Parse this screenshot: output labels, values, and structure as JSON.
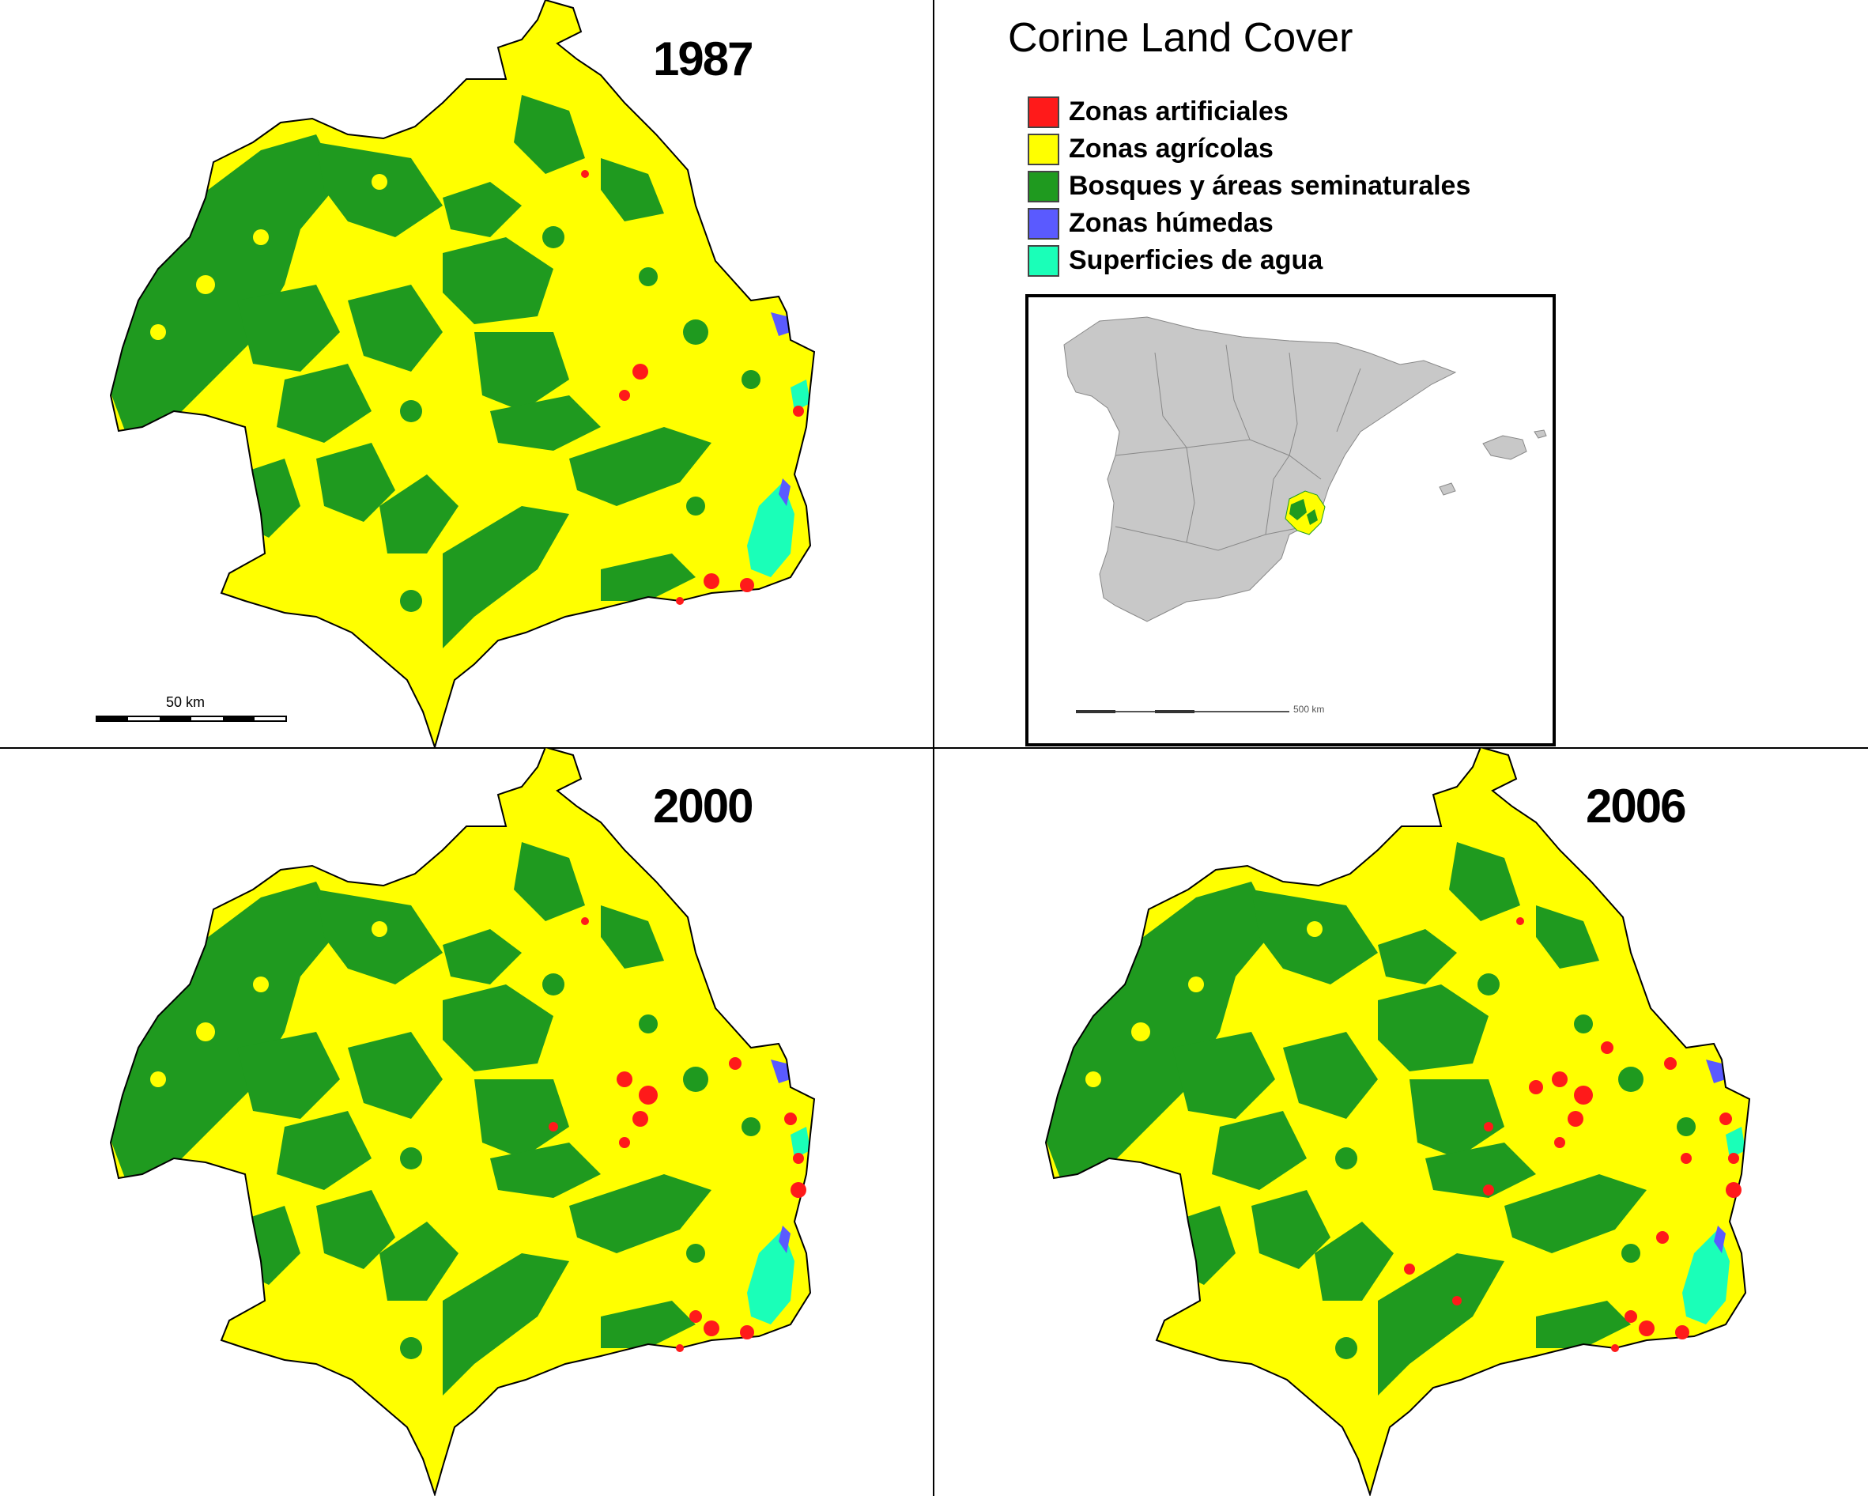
{
  "colors": {
    "artificial": "#ff1a1a",
    "agricultural": "#ffff00",
    "forest": "#1f9a1f",
    "wetland": "#5a5aff",
    "water": "#1affb8",
    "spain": "#c8c8c8"
  },
  "maps": [
    {
      "year": "1987"
    },
    {
      "year": "2000"
    },
    {
      "year": "2006"
    }
  ],
  "scale_bar": {
    "label": "50 km"
  },
  "legend": {
    "title": "Corine Land Cover",
    "items": [
      {
        "label": "Zonas artificiales",
        "color": "#ff1a1a"
      },
      {
        "label": "Zonas agrícolas",
        "color": "#ffff00"
      },
      {
        "label": "Bosques y áreas seminaturales",
        "color": "#1f9a1f"
      },
      {
        "label": "Zonas húmedas",
        "color": "#5a5aff"
      },
      {
        "label": "Superficies de agua",
        "color": "#1affb8"
      }
    ]
  },
  "inset": {
    "scale_label": "500 km"
  }
}
